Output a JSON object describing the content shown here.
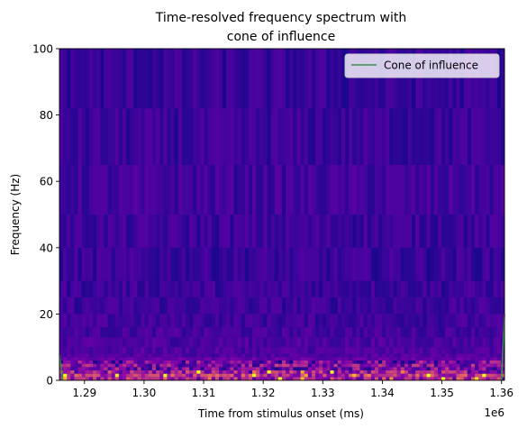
{
  "chart_data": {
    "type": "heatmap",
    "title_lines": [
      "Time-resolved frequency spectrum with",
      "cone of influence"
    ],
    "xlabel": "Time from stimulus onset (ms)",
    "ylabel": "Frequency (Hz)",
    "x_offset_label": "1e6",
    "xlim": [
      1285800,
      1360500
    ],
    "ylim": [
      0,
      100
    ],
    "x_ticks": [
      1290000,
      1300000,
      1310000,
      1320000,
      1330000,
      1340000,
      1350000,
      1360000
    ],
    "x_tick_labels": [
      "1.29",
      "1.30",
      "1.31",
      "1.32",
      "1.33",
      "1.34",
      "1.35",
      "1.36"
    ],
    "y_ticks": [
      0,
      20,
      40,
      60,
      80,
      100
    ],
    "y_tick_labels": [
      "0",
      "20",
      "40",
      "60",
      "80",
      "100"
    ],
    "colormap": "plasma",
    "frequency_band_edges_hz": [
      0,
      1,
      2,
      3,
      4,
      5,
      6,
      7,
      8,
      10,
      13,
      16,
      20,
      25,
      30,
      40,
      50,
      65,
      82,
      100
    ],
    "band_mean_power": [
      0.45,
      0.52,
      0.4,
      0.32,
      0.34,
      0.28,
      0.24,
      0.18,
      0.17,
      0.16,
      0.14,
      0.13,
      0.12,
      0.12,
      0.11,
      0.12,
      0.13,
      0.11,
      0.1
    ],
    "grid": false,
    "legend": {
      "position": "top-right",
      "entries": [
        {
          "label": "Cone of influence",
          "color": "#3a8f4f"
        }
      ]
    },
    "cone_of_influence": {
      "left_edge": {
        "x": [
          1285800,
          1286300
        ],
        "y": [
          8,
          0
        ]
      },
      "right_edge": {
        "x": [
          1360000,
          1360500
        ],
        "y": [
          0,
          20
        ]
      }
    }
  }
}
